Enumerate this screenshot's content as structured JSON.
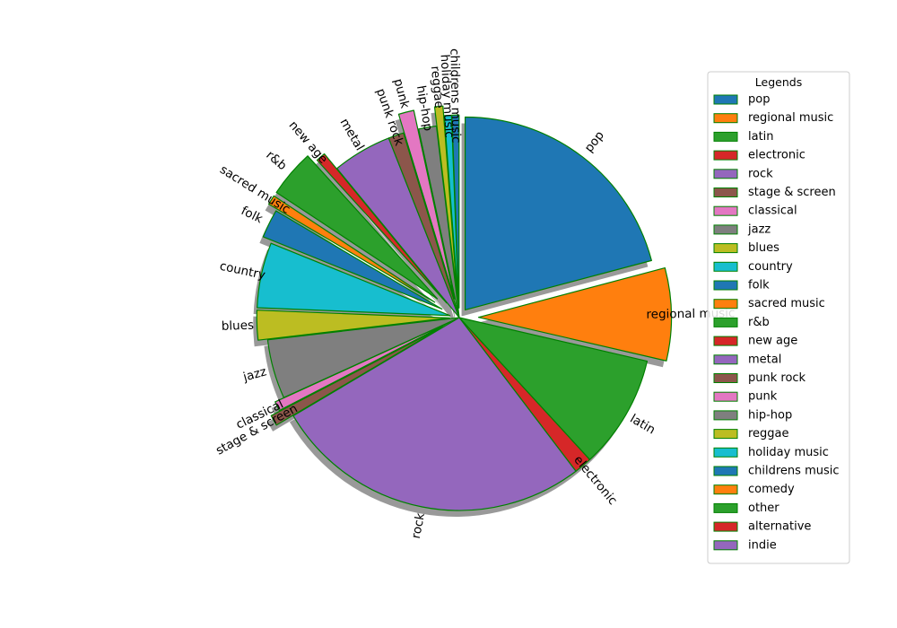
{
  "chart_data": {
    "type": "pie",
    "legend_title": "Legends",
    "legend_position": "right",
    "slices": [
      {
        "label": "pop",
        "value": 21.0,
        "color": "#1f77b4",
        "explode": 0.05
      },
      {
        "label": "regional music",
        "value": 7.8,
        "color": "#ff7f0e",
        "explode": 0.1
      },
      {
        "label": "latin",
        "value": 9.6,
        "color": "#2ca02c",
        "explode": 0.0
      },
      {
        "label": "electronic",
        "value": 1.5,
        "color": "#d62728",
        "explode": 0.0
      },
      {
        "label": "rock",
        "value": 27.0,
        "color": "#9467bd",
        "explode": 0.0
      },
      {
        "label": "stage & screen",
        "value": 0.9,
        "color": "#8c564b",
        "explode": 0.1
      },
      {
        "label": "classical",
        "value": 0.8,
        "color": "#e377c2",
        "explode": 0.05
      },
      {
        "label": "jazz",
        "value": 5.0,
        "color": "#7f7f7f",
        "explode": 0.0
      },
      {
        "label": "blues",
        "value": 2.5,
        "color": "#bcbd22",
        "explode": 0.05
      },
      {
        "label": "country",
        "value": 5.5,
        "color": "#17becf",
        "explode": 0.05
      },
      {
        "label": "folk",
        "value": 2.4,
        "color": "#1f77b4",
        "explode": 0.1
      },
      {
        "label": "sacred music",
        "value": 0.8,
        "color": "#ff7f0e",
        "explode": 0.15
      },
      {
        "label": "r&b",
        "value": 4.0,
        "color": "#2ca02c",
        "explode": 0.15
      },
      {
        "label": "new age",
        "value": 0.8,
        "color": "#d62728",
        "explode": 0.1
      },
      {
        "label": "metal",
        "value": 5.0,
        "color": "#9467bd",
        "explode": 0.0
      },
      {
        "label": "punk rock",
        "value": 1.3,
        "color": "#8c564b",
        "explode": 0.0
      },
      {
        "label": "punk",
        "value": 1.3,
        "color": "#e377c2",
        "explode": 0.1
      },
      {
        "label": "hip-hop",
        "value": 1.5,
        "color": "#7f7f7f",
        "explode": 0.0
      },
      {
        "label": "reggae",
        "value": 0.7,
        "color": "#bcbd22",
        "explode": 0.1
      },
      {
        "label": "holiday music",
        "value": 0.6,
        "color": "#17becf",
        "explode": 0.05
      },
      {
        "label": "childrens music",
        "value": 0.6,
        "color": "#1f77b4",
        "explode": 0.05
      },
      {
        "label": "comedy",
        "value": 0.0,
        "color": "#ff7f0e",
        "explode": 0.0
      },
      {
        "label": "other",
        "value": 0.0,
        "color": "#2ca02c",
        "explode": 0.0
      },
      {
        "label": "alternative",
        "value": 0.0,
        "color": "#d62728",
        "explode": 0.0
      },
      {
        "label": "indie",
        "value": 0.0,
        "color": "#9467bd",
        "explode": 0.0
      }
    ],
    "start_angle_deg": 90,
    "direction": "clockwise",
    "shadow": true,
    "edge_color": "#008000"
  }
}
